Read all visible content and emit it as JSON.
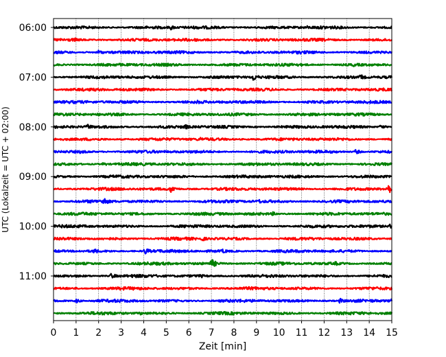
{
  "chart_data": {
    "type": "line",
    "title": "",
    "xlabel": "Zeit  [min]",
    "ylabel": "UTC (Lokalzeit = UTC + 02:00)",
    "xlim": [
      0,
      15
    ],
    "x_ticks": [
      0,
      1,
      2,
      3,
      4,
      5,
      6,
      7,
      8,
      9,
      10,
      11,
      12,
      13,
      14,
      15
    ],
    "x_grid": true,
    "y_ticks": [
      "06:00",
      "07:00",
      "08:00",
      "09:00",
      "10:00",
      "11:00"
    ],
    "trace_interval_minutes": 15,
    "color_cycle": [
      "#000000",
      "#ff0000",
      "#0000ff",
      "#008000"
    ],
    "traces": [
      {
        "start": "06:00",
        "color": "#000000",
        "events": [
          {
            "x": 5.2,
            "amp": 0.45
          },
          {
            "x": 11.2,
            "amp": 0.35
          }
        ]
      },
      {
        "start": "06:15",
        "color": "#ff0000",
        "events": [
          {
            "x": 0.95,
            "amp": 0.35
          }
        ]
      },
      {
        "start": "06:30",
        "color": "#0000ff",
        "events": [
          {
            "x": 2.0,
            "amp": 0.45
          }
        ]
      },
      {
        "start": "06:45",
        "color": "#008000",
        "events": [
          {
            "x": 13.3,
            "amp": 0.35
          }
        ]
      },
      {
        "start": "07:00",
        "color": "#000000",
        "events": [
          {
            "x": 8.85,
            "amp": 0.7
          },
          {
            "x": 13.6,
            "amp": 0.55
          }
        ]
      },
      {
        "start": "07:15",
        "color": "#ff0000",
        "events": []
      },
      {
        "start": "07:30",
        "color": "#0000ff",
        "events": [
          {
            "x": 6.4,
            "amp": 0.4
          }
        ]
      },
      {
        "start": "07:45",
        "color": "#008000",
        "events": [
          {
            "x": 10.75,
            "amp": 0.4
          }
        ]
      },
      {
        "start": "08:00",
        "color": "#000000",
        "events": [
          {
            "x": 1.5,
            "amp": 0.55
          },
          {
            "x": 5.8,
            "amp": 0.55
          },
          {
            "x": 14.5,
            "amp": 0.4
          }
        ]
      },
      {
        "start": "08:15",
        "color": "#ff0000",
        "events": [
          {
            "x": 6.5,
            "amp": 0.4
          }
        ]
      },
      {
        "start": "08:30",
        "color": "#0000ff",
        "events": [
          {
            "x": 1.2,
            "amp": 0.4
          },
          {
            "x": 13.4,
            "amp": 0.45
          }
        ]
      },
      {
        "start": "08:45",
        "color": "#008000",
        "events": [
          {
            "x": 2.2,
            "amp": 0.35
          }
        ]
      },
      {
        "start": "09:00",
        "color": "#000000",
        "events": [
          {
            "x": 2.8,
            "amp": 0.35
          }
        ]
      },
      {
        "start": "09:15",
        "color": "#ff0000",
        "events": [
          {
            "x": 5.2,
            "amp": 0.7
          },
          {
            "x": 14.8,
            "amp": 1.0
          }
        ]
      },
      {
        "start": "09:30",
        "color": "#0000ff",
        "events": [
          {
            "x": 2.2,
            "amp": 0.8
          },
          {
            "x": 9.1,
            "amp": 0.45
          }
        ]
      },
      {
        "start": "09:45",
        "color": "#008000",
        "events": [
          {
            "x": 9.7,
            "amp": 0.4
          }
        ]
      },
      {
        "start": "10:00",
        "color": "#000000",
        "events": [
          {
            "x": 14.9,
            "amp": 0.4
          }
        ]
      },
      {
        "start": "10:15",
        "color": "#ff0000",
        "events": [
          {
            "x": 5.5,
            "amp": 0.4
          },
          {
            "x": 6.6,
            "amp": 0.45
          }
        ]
      },
      {
        "start": "10:30",
        "color": "#0000ff",
        "events": [
          {
            "x": 1.8,
            "amp": 0.5
          },
          {
            "x": 4.05,
            "amp": 0.65
          },
          {
            "x": 7.5,
            "amp": 0.45
          }
        ]
      },
      {
        "start": "10:45",
        "color": "#008000",
        "events": [
          {
            "x": 7.0,
            "amp": 0.85
          },
          {
            "x": 12.5,
            "amp": 0.4
          }
        ]
      },
      {
        "start": "11:00",
        "color": "#000000",
        "events": [
          {
            "x": 2.55,
            "amp": 0.55
          },
          {
            "x": 6.5,
            "amp": 0.4
          }
        ]
      },
      {
        "start": "11:15",
        "color": "#ff0000",
        "events": []
      },
      {
        "start": "11:30",
        "color": "#0000ff",
        "events": [
          {
            "x": 1.0,
            "amp": 0.4
          },
          {
            "x": 12.7,
            "amp": 0.5
          },
          {
            "x": 14.95,
            "amp": 0.5
          }
        ]
      },
      {
        "start": "11:45",
        "color": "#008000",
        "events": [
          {
            "x": 3.8,
            "amp": 0.35
          }
        ]
      }
    ]
  }
}
